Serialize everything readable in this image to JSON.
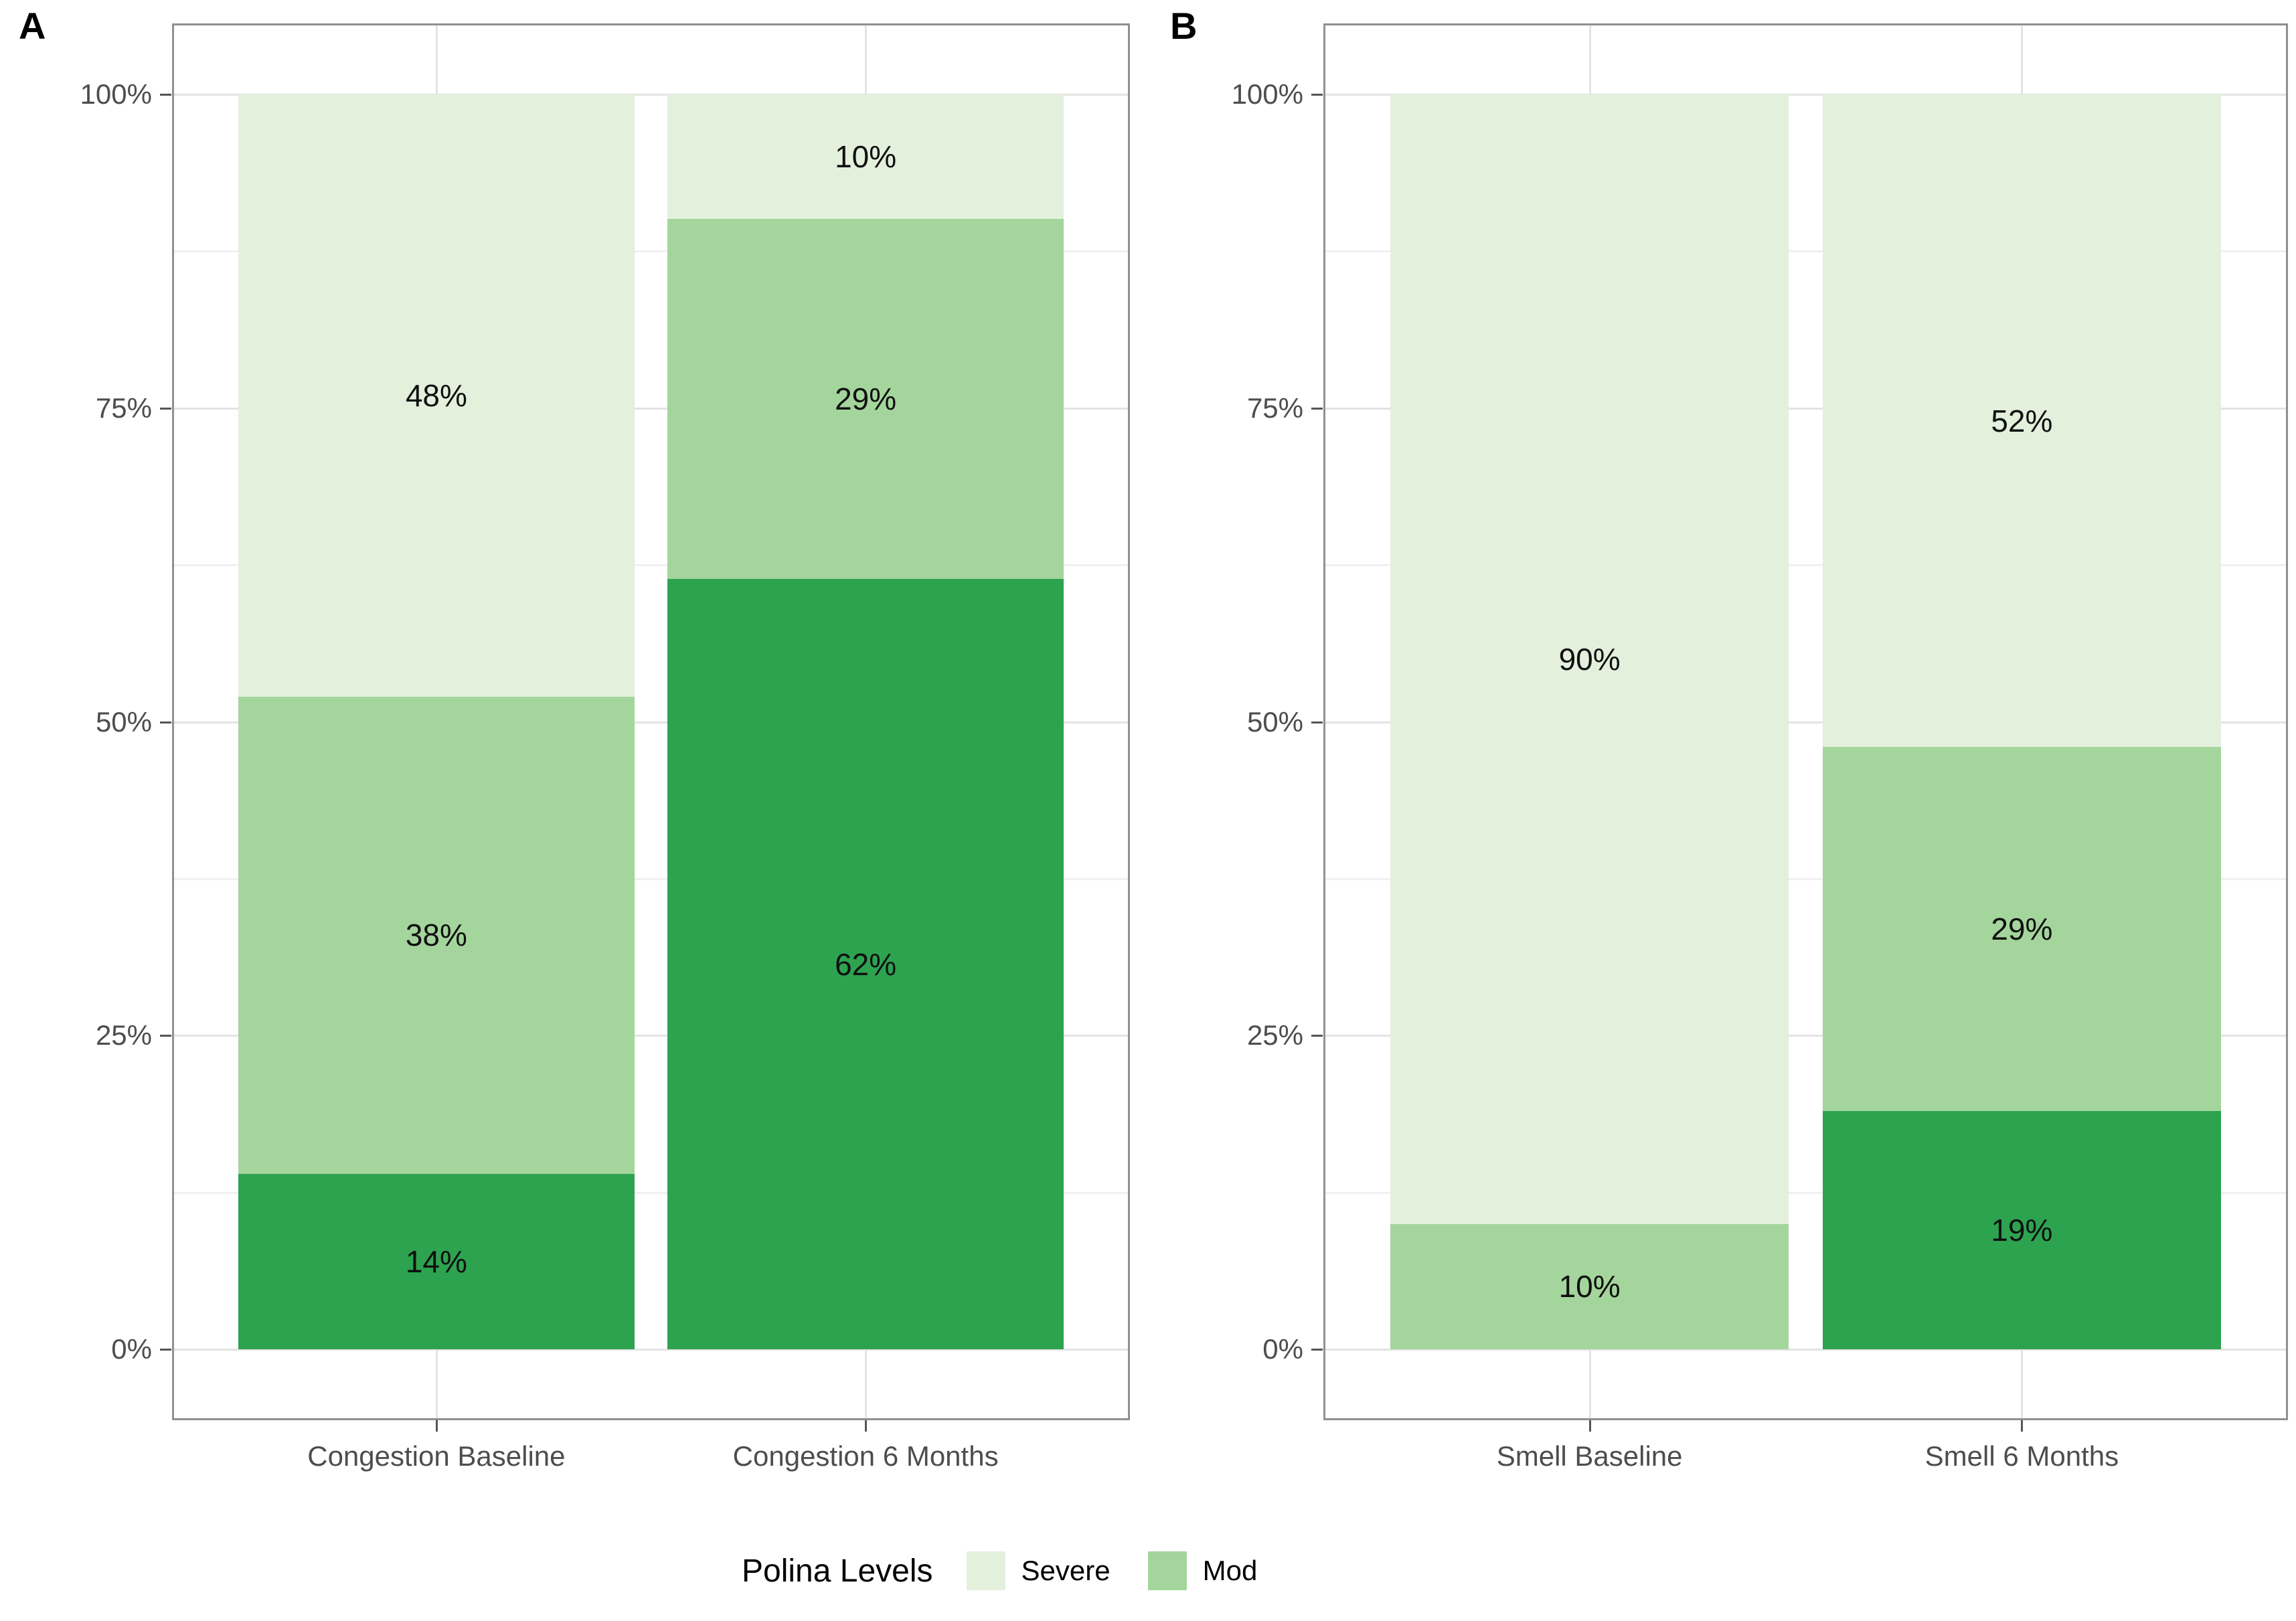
{
  "page": {
    "background": "#ffffff"
  },
  "colors": {
    "level_light": "#e3f0dc",
    "level_medium": "#a4d59c",
    "level_dark": "#2da350"
  },
  "legend": {
    "title": "Polina Levels",
    "items": [
      {
        "label": "Severe",
        "color": "#e3f0dc"
      },
      {
        "label": "Mod",
        "color": "#a4d59c"
      }
    ]
  },
  "chart_data": [
    {
      "type": "bar",
      "stacked": true,
      "units": "percent",
      "panel_label": "A",
      "categories": [
        "Congestion Baseline",
        "Congestion 6 Months"
      ],
      "series": [
        {
          "name": "Severe",
          "level": "light",
          "color": "#e3f0dc",
          "values": [
            48,
            10
          ]
        },
        {
          "name": "Mod",
          "level": "medium",
          "color": "#a4d59c",
          "values": [
            38,
            29
          ]
        },
        {
          "name": "",
          "level": "dark",
          "color": "#2da350",
          "values": [
            14,
            62
          ]
        }
      ],
      "bar_value_labels": [
        [
          "48%",
          "10%"
        ],
        [
          "38%",
          "29%"
        ],
        [
          "14%",
          "62%"
        ]
      ],
      "y_ticks": {
        "values": [
          0,
          25,
          50,
          75,
          100
        ],
        "labels": [
          "0%",
          "25%",
          "50%",
          "75%",
          "100%"
        ]
      },
      "y_minor_ticks": [
        12.5,
        37.5,
        62.5,
        87.5
      ],
      "ylim": [
        0,
        100
      ],
      "grid": "major+minor horizontal, vertical at categories",
      "legend_position": "bottom"
    },
    {
      "type": "bar",
      "stacked": true,
      "units": "percent",
      "panel_label": "B",
      "categories": [
        "Smell Baseline",
        "Smell 6 Months"
      ],
      "series": [
        {
          "name": "Severe",
          "level": "light",
          "color": "#e3f0dc",
          "values": [
            90,
            52
          ]
        },
        {
          "name": "Mod",
          "level": "medium",
          "color": "#a4d59c",
          "values": [
            10,
            29
          ]
        },
        {
          "name": "",
          "level": "dark",
          "color": "#2da350",
          "values": [
            0,
            19
          ]
        }
      ],
      "bar_value_labels": [
        [
          "90%",
          "52%"
        ],
        [
          "10%",
          "29%"
        ],
        [
          "",
          "19%"
        ]
      ],
      "y_ticks": {
        "values": [
          0,
          25,
          50,
          75,
          100
        ],
        "labels": [
          "0%",
          "25%",
          "50%",
          "75%",
          "100%"
        ]
      },
      "y_minor_ticks": [
        12.5,
        37.5,
        62.5,
        87.5
      ],
      "ylim": [
        0,
        100
      ],
      "grid": "major+minor horizontal, vertical at categories",
      "legend_position": "bottom"
    }
  ]
}
